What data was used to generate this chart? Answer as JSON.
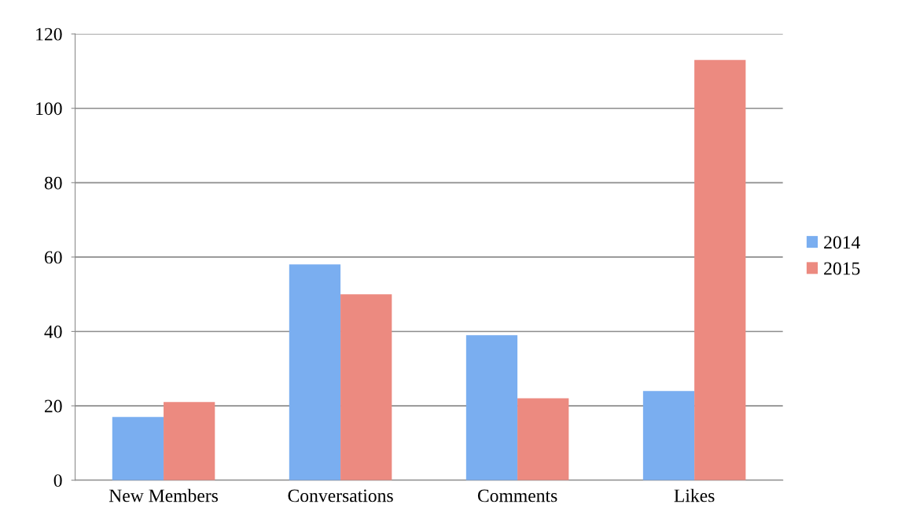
{
  "chart_data": {
    "type": "bar",
    "categories": [
      "New Members",
      "Conversations",
      "Comments",
      "Likes"
    ],
    "series": [
      {
        "name": "2014",
        "color": "#7aaef0",
        "values": [
          17,
          58,
          39,
          24
        ]
      },
      {
        "name": "2015",
        "color": "#ec8a80",
        "values": [
          21,
          50,
          22,
          113
        ]
      }
    ],
    "ylim": [
      0,
      120
    ],
    "yticks": [
      0,
      20,
      40,
      60,
      80,
      100,
      120
    ],
    "grid": "y",
    "legend": "right"
  }
}
